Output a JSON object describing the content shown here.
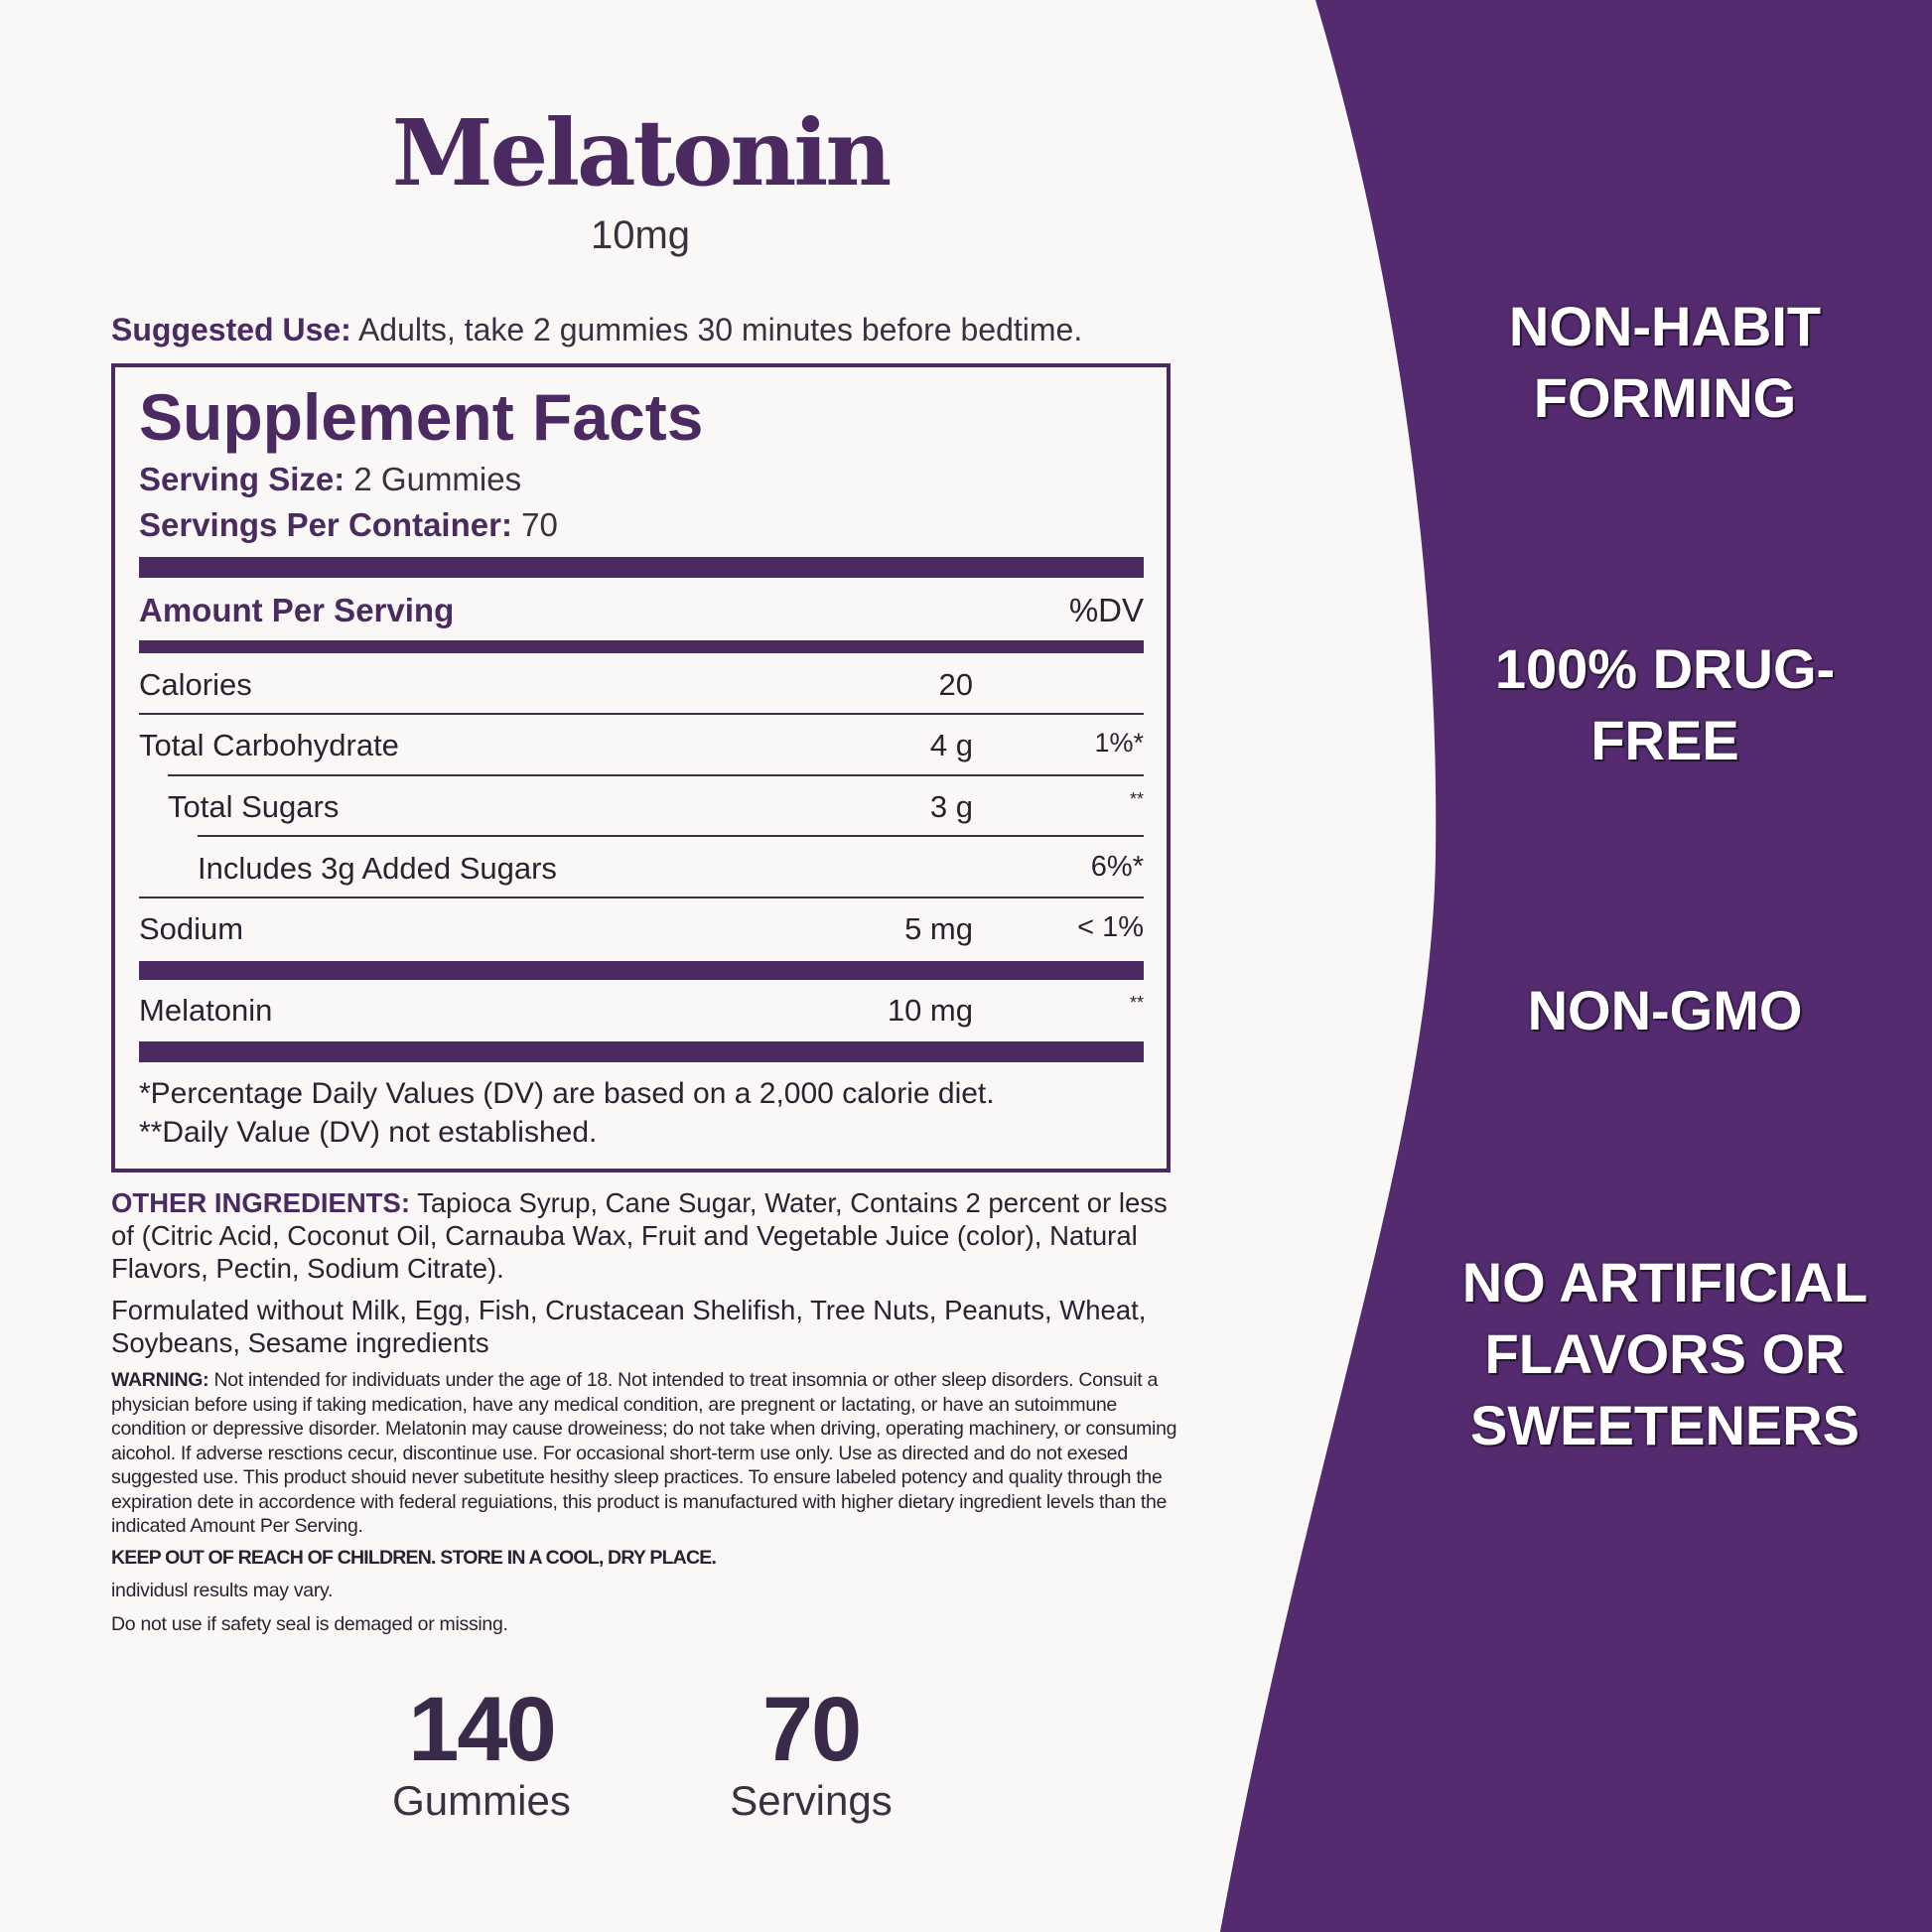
{
  "product": {
    "name": "Melatonin",
    "strength": "10mg"
  },
  "suggested_use": {
    "label": "Suggested Use:",
    "text": " Adults, take 2 gummies 30 minutes before bedtime."
  },
  "facts": {
    "title": "Supplement Facts",
    "serving_size_label": "Serving Size:",
    "serving_size": " 2 Gummies",
    "servings_label": "Servings Per Container:",
    "servings": " 70",
    "amount_header": "Amount Per Serving",
    "dv_header": "%DV",
    "rows": [
      {
        "name": "Calories",
        "amount": "20",
        "dv": ""
      },
      {
        "name": "Total Carbohydrate",
        "amount": "4 g",
        "dv": "1%*"
      },
      {
        "name": "Total Sugars",
        "amount": "3 g",
        "dv": "**"
      },
      {
        "name": "Includes 3g Added Sugars",
        "amount": "",
        "dv": "6%*"
      },
      {
        "name": "Sodium",
        "amount": "5 mg",
        "dv": "< 1%"
      },
      {
        "name": "Melatonin",
        "amount": "10 mg",
        "dv": "**"
      }
    ],
    "footnote1": "*Percentage Daily Values (DV) are based on a 2,000 calorie diet.",
    "footnote2": "**Daily Value (DV) not established."
  },
  "other_ingredients": {
    "label": "OTHER INGREDIENTS:",
    "text": " Tapioca Syrup, Cane Sugar, Water, Contains 2 percent or less of (Citric Acid, Coconut Oil, Carnauba Wax, Fruit and Vegetable Juice (color), Natural Flavors, Pectin, Sodium Citrate)."
  },
  "allergens": "Formulated without Milk, Egg, Fish, Crustacean Shelifish, Tree Nuts, Peanuts, Wheat, Soybeans, Sesame ingredients",
  "warning": {
    "label": "WARNING:",
    "text": " Not intended for individuats under the age of 18. Not intended to treat insomnia or other sleep disorders. Consuit a physician before using if taking medication, have any medical condition, are pregnent or lactating, or have an sutoimmune condition or depressive disorder. Melatonin may cause droweiness; do not take when driving, operating machinery, or consuming aicohol. If adverse resctions cecur, discontinue use. For occasional short-term use only. Use as directed and do not exesed suggested use. This product shouid never subetitute hesithy sleep practices. To ensure labeled potency and quality through the expiration dete in accordence with federal reguiations, this product is manufactured with higher dietary ingredient levels than the indicated Amount Per Serving."
  },
  "keep_out": "KEEP OUT OF REACH OF CHILDREN. STORE IN A COOL, DRY PLACE.",
  "results": "individusl results may vary.",
  "seal": "Do not use if safety seal is demaged or missing.",
  "counts": [
    {
      "value": "140",
      "label": "Gummies"
    },
    {
      "value": "70",
      "label": "Servings"
    }
  ],
  "claims": [
    "NON-HABIT FORMING",
    "100% DRUG-FREE",
    "NON-GMO",
    "NO ARTIFICIAL FLAVORS OR SWEETENERS"
  ],
  "colors": {
    "brand_purple": "#532b6e",
    "background": "#faf8f7"
  }
}
